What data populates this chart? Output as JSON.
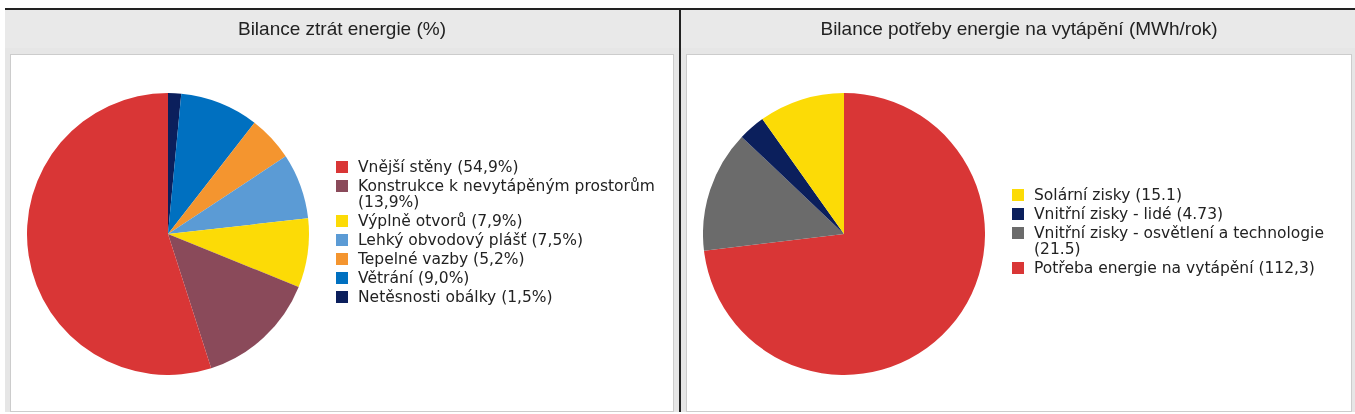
{
  "chart_data": [
    {
      "type": "pie",
      "title": "Bilance ztrát energie (%)",
      "legend": "right",
      "categories": [
        "Vnější stěny (54,9%)",
        "Konstrukce k nevytápěným prostorům (13,9%)",
        "Výplně otvorů (7,9%)",
        "Lehký obvodový plášť (7,5%)",
        "Tepelné vazby (5,2%)",
        "Větrání (9,0%)",
        "Netěsnosti obálky (1,5%)"
      ],
      "values": [
        54.9,
        13.9,
        7.9,
        7.5,
        5.2,
        9.0,
        1.5
      ],
      "colors": [
        "#d93636",
        "#8a4a5a",
        "#fcdb06",
        "#5b9bd5",
        "#f4952f",
        "#0070c0",
        "#0b1f5c"
      ]
    },
    {
      "type": "pie",
      "title": "Bilance potřeby energie na vytápění (MWh/rok)",
      "legend": "right",
      "categories": [
        "Solární zisky (15.1)",
        "Vnitřní zisky - lidé (4.73)",
        "Vnitřní zisky - osvětlení a technologie (21.5)",
        "Potřeba energie na vytápění (112,3)"
      ],
      "values": [
        15.1,
        4.73,
        21.5,
        112.3
      ],
      "colors": [
        "#fcdb06",
        "#0b1f5c",
        "#6b6b6b",
        "#d93636"
      ]
    }
  ]
}
